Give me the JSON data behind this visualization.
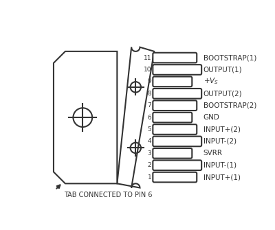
{
  "bg_color": "#ffffff",
  "line_color": "#333333",
  "text_color": "#333333",
  "pin_labels": {
    "11": "BOOTSTRAP(1)",
    "10": "OUTPUT(1)",
    "9": "+Vs",
    "8": "OUTPUT(2)",
    "7": "BOOTSTRAP(2)",
    "6": "GND",
    "5": "INPUT+(2)",
    "4": "INPUT-(2)",
    "3": "SVRR",
    "2": "INPUT-(1)",
    "1": "INPUT+(1)"
  },
  "pin_lengths": {
    "11": 0.13,
    "10": 0.145,
    "9": 0.115,
    "8": 0.145,
    "7": 0.13,
    "6": 0.115,
    "5": 0.13,
    "4": 0.145,
    "3": 0.115,
    "2": 0.145,
    "1": 0.13
  },
  "tab_label": "TAB CONNECTED TO PIN 6"
}
